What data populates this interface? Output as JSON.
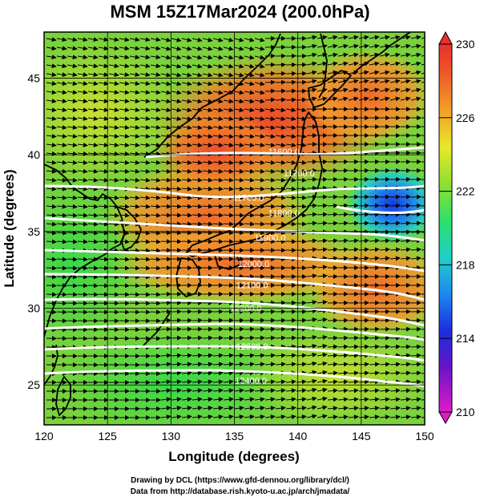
{
  "title": "MSM 15Z17Mar2024 (200.0hPa)",
  "map": {
    "xlabel": "Longitude (degrees)",
    "ylabel": "Latitude  (degrees)",
    "lon_range": [
      120,
      150
    ],
    "lat_range": [
      22.4,
      48
    ],
    "lon_ticks": [
      "120",
      "125",
      "130",
      "135",
      "140",
      "145",
      "150"
    ],
    "lat_ticks": [
      "25",
      "30",
      "35",
      "40",
      "45"
    ],
    "shading_variable_range": [
      210,
      230
    ],
    "colorbar_ticks": [
      "210",
      "214",
      "218",
      "222",
      "226",
      "230"
    ],
    "contours": [
      {
        "label": "11600.0",
        "lon": 138.9,
        "lat": 40.0
      },
      {
        "label": "11700.0",
        "lon": 140.1,
        "lat": 38.6
      },
      {
        "label": "11700.0",
        "lon": 136.1,
        "lat": 37.0
      },
      {
        "label": "11800.0",
        "lon": 138.9,
        "lat": 36.0
      },
      {
        "label": "11900.0",
        "lon": 137.8,
        "lat": 34.4
      },
      {
        "label": "12000.0",
        "lon": 136.5,
        "lat": 32.7
      },
      {
        "label": "12100.0",
        "lon": 136.4,
        "lat": 31.3
      },
      {
        "label": "12200.0",
        "lon": 135.9,
        "lat": 29.8
      },
      {
        "label": "12300.0",
        "lon": 136.4,
        "lat": 27.3
      },
      {
        "label": "12400.0",
        "lon": 136.3,
        "lat": 25.1
      }
    ]
  },
  "colors": {
    "warm": "#e8502a",
    "mid": "#7ad23c",
    "cool": "#1744d8",
    "contour": "#ffffff",
    "coast": "#000000"
  },
  "credits": {
    "line1": "Drawing by DCL (https://www.gfd-dennou.org/library/dcl/)",
    "line2": "Data from http://database.rish.kyoto-u.ac.jp/arch/jmadata/"
  }
}
